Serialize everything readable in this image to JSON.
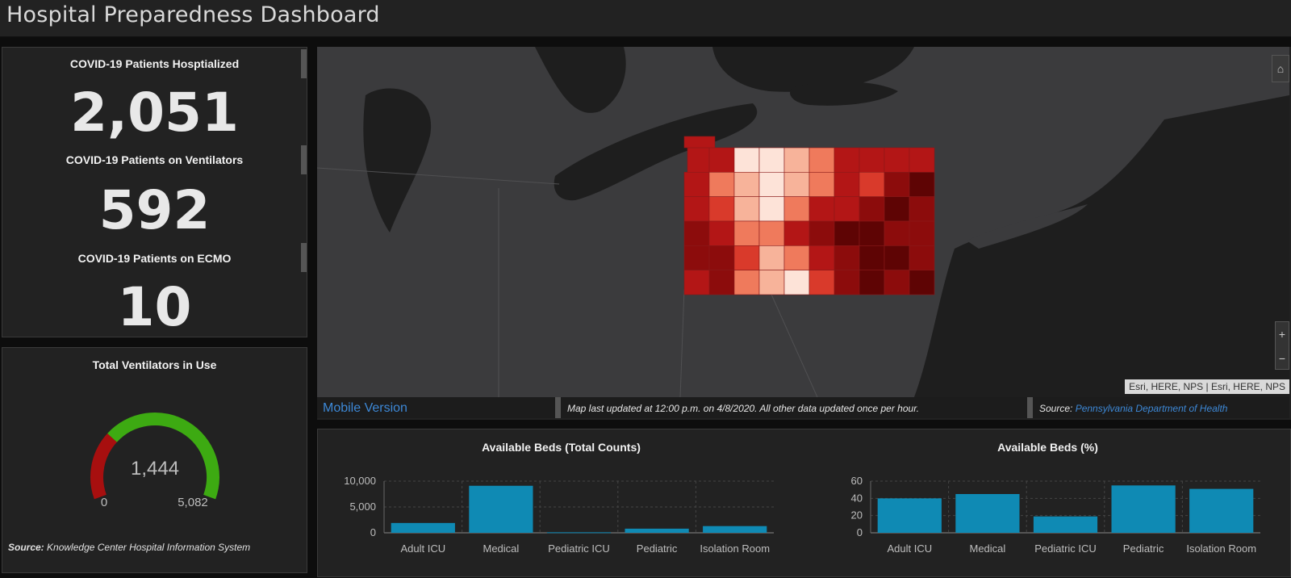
{
  "header": {
    "title": "Hospital Preparedness Dashboard"
  },
  "stats": [
    {
      "label": "COVID-19 Patients Hosptialized",
      "value": "2,051"
    },
    {
      "label": "COVID-19 Patients on Ventilators",
      "value": "592"
    },
    {
      "label": "COVID-19 Patients on ECMO",
      "value": "10"
    }
  ],
  "gauge": {
    "title": "Total Ventilators in Use",
    "value": 1444,
    "value_label": "1,444",
    "min_label": "0",
    "max_label": "5,082",
    "max": 5082,
    "source_label": "Source:",
    "source_text": "Knowledge Center Hospital Information System",
    "colors": {
      "low": "#a70f0f",
      "high": "#3daa12"
    }
  },
  "map": {
    "mobile_link": "Mobile Version",
    "updated_text": "Map last updated at 12:00 p.m. on 4/8/2020. All other data updated once per hour.",
    "source_label": "Source:",
    "source_link": "Pennsylvania Department of Health",
    "attribution": "Esri, HERE, NPS | Esri, HERE, NPS",
    "home_icon": "home-icon",
    "zoom_plus": "+",
    "zoom_minus": "−"
  },
  "chart_data": [
    {
      "type": "bar",
      "title": "Available Beds (Total Counts)",
      "categories": [
        "Adult ICU",
        "Medical",
        "Pediatric ICU",
        "Pediatric",
        "Isolation Room"
      ],
      "values": [
        1900,
        9100,
        100,
        800,
        1300
      ],
      "ylim": [
        0,
        10000
      ],
      "yticks": [
        0,
        5000,
        10000
      ],
      "ytick_labels": [
        "0",
        "5,000",
        "10,000"
      ],
      "color": "#0f8ab4"
    },
    {
      "type": "bar",
      "title": "Available Beds (%)",
      "categories": [
        "Adult ICU",
        "Medical",
        "Pediatric ICU",
        "Pediatric",
        "Isolation Room"
      ],
      "values": [
        40,
        45,
        19,
        55,
        51
      ],
      "ylim": [
        0,
        60
      ],
      "yticks": [
        0,
        20,
        40,
        60
      ],
      "ytick_labels": [
        "0",
        "20",
        "40",
        "60"
      ],
      "color": "#0f8ab4"
    }
  ]
}
